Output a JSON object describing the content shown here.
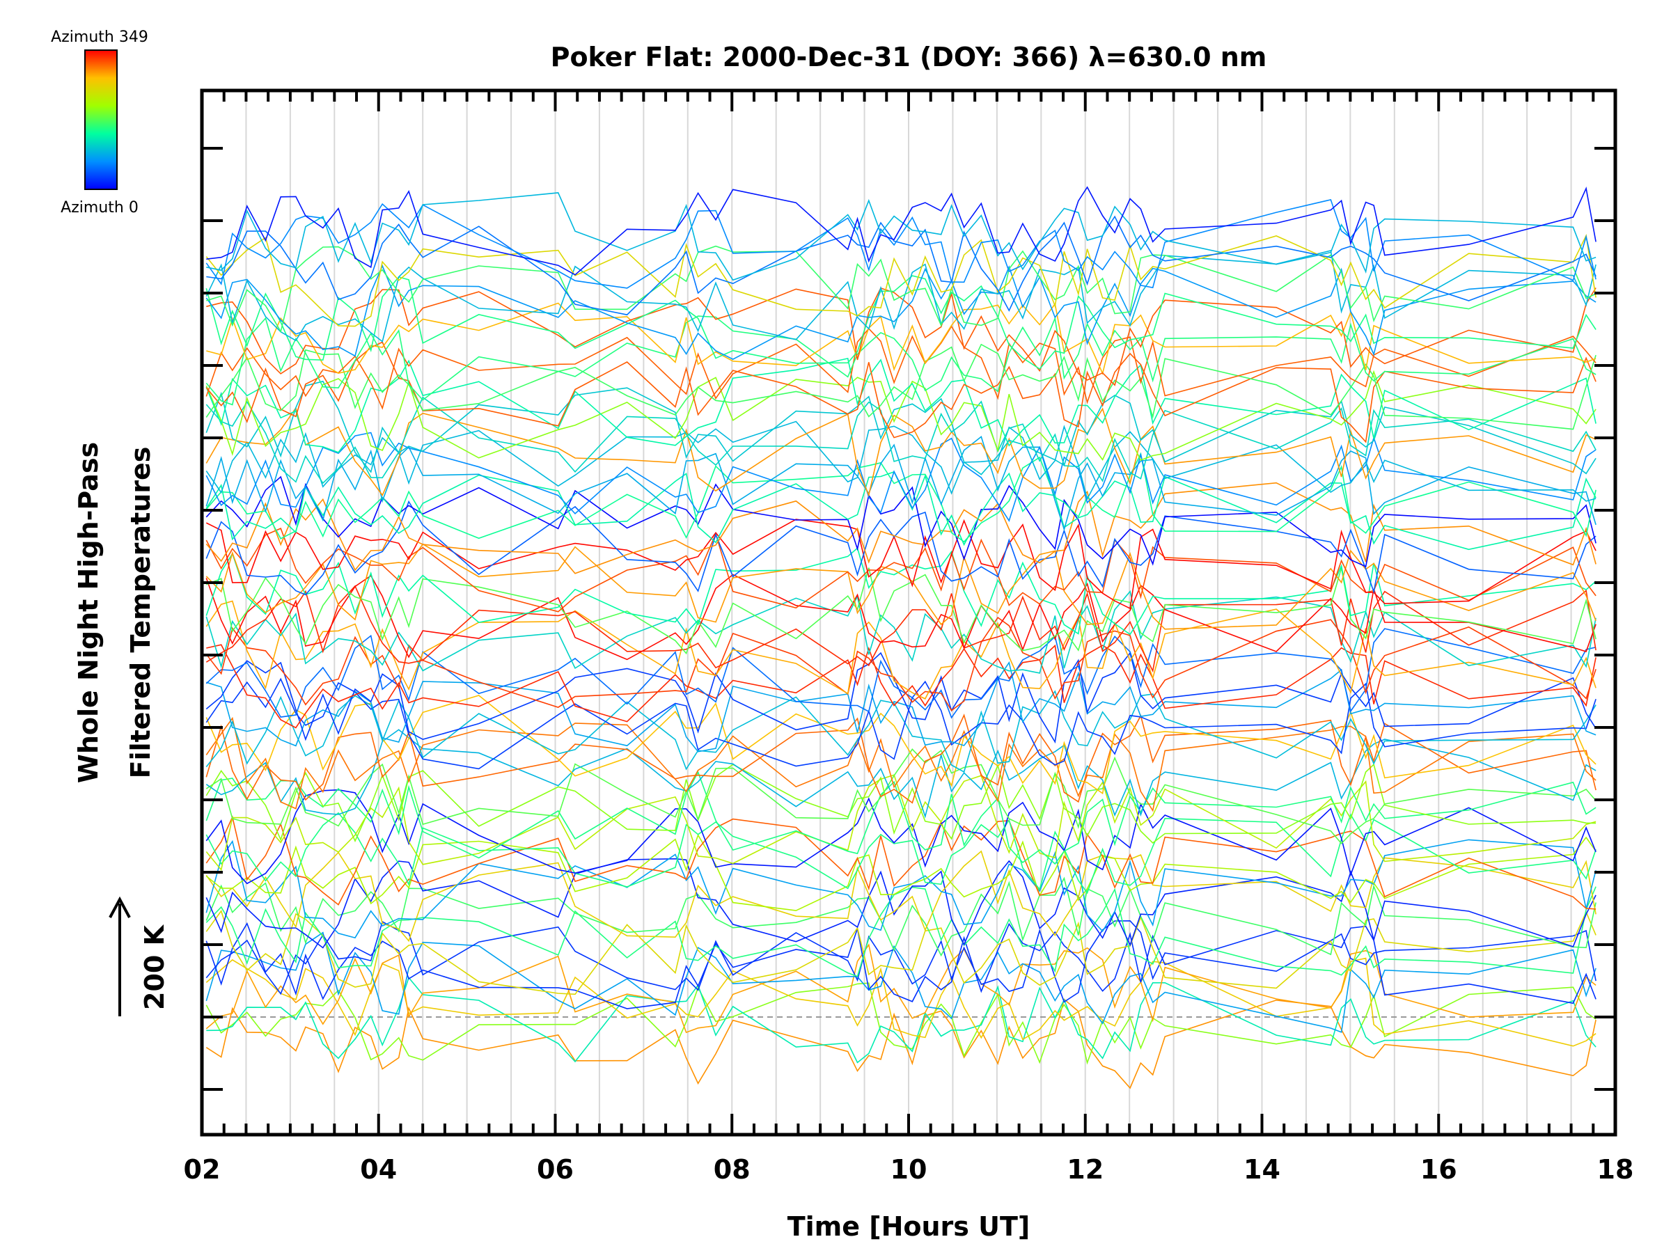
{
  "chart_data": {
    "type": "line",
    "title": "Poker Flat: 2000-Dec-31 (DOY: 366) λ=630.0 nm",
    "xlabel": "Time [Hours UT]",
    "ylabel_line1": "Whole Night High-Pass",
    "ylabel_line2": "Filtered Temperatures",
    "xlim": [
      2,
      18
    ],
    "x_tick_labels": [
      "02",
      "04",
      "06",
      "08",
      "10",
      "12",
      "14",
      "16",
      "18"
    ],
    "y_offset_step_k": 200,
    "n_series": 70,
    "grid": true,
    "colorbar": {
      "top_label": "Azimuth 349",
      "bottom_label": "Azimuth 0",
      "colors": [
        "#0000ff",
        "#0080ff",
        "#00ffff",
        "#00ff80",
        "#80ff00",
        "#ffff00",
        "#ff8000",
        "#ff0000"
      ]
    },
    "scale_bar": {
      "label": "200 K"
    },
    "baseline_dashed": true,
    "color_scale": "rainbow"
  }
}
